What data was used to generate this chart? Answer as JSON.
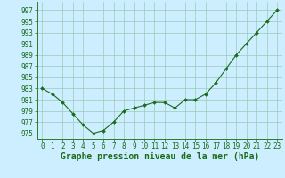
{
  "x": [
    0,
    1,
    2,
    3,
    4,
    5,
    6,
    7,
    8,
    9,
    10,
    11,
    12,
    13,
    14,
    15,
    16,
    17,
    18,
    19,
    20,
    21,
    22,
    23
  ],
  "y": [
    983,
    982,
    980.5,
    978.5,
    976.5,
    975,
    975.5,
    977,
    979,
    979.5,
    980,
    980.5,
    980.5,
    979.5,
    981,
    981,
    982,
    984,
    986.5,
    989,
    991,
    993,
    995,
    997
  ],
  "line_color": "#1a6b1a",
  "marker": "D",
  "marker_size": 2.0,
  "bg_color": "#cceeff",
  "grid_color": "#99ccbb",
  "ylabel_values": [
    975,
    977,
    979,
    981,
    983,
    985,
    987,
    989,
    991,
    993,
    995,
    997
  ],
  "xlabel": "Graphe pression niveau de la mer (hPa)",
  "xlabel_fontsize": 7,
  "tick_fontsize": 5.5,
  "ylim": [
    974,
    998.5
  ],
  "xlim": [
    -0.5,
    23.5
  ]
}
